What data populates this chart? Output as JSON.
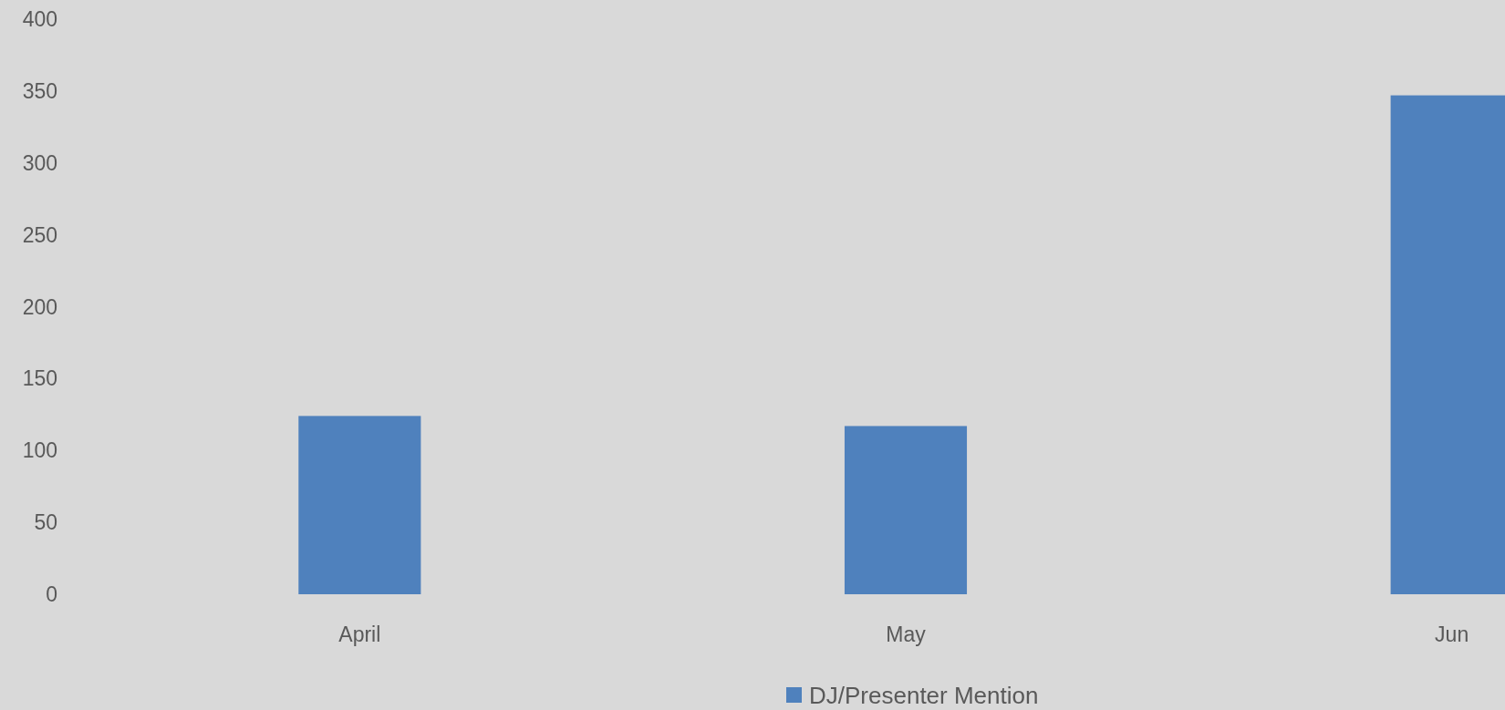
{
  "chart_data": {
    "type": "bar",
    "categories": [
      "April",
      "May",
      "Jun"
    ],
    "series": [
      {
        "name": "DJ/Presenter Mention",
        "color": "#4f81bd",
        "values": [
          124,
          117,
          347
        ]
      }
    ],
    "ylim": [
      0,
      400
    ],
    "yticks": [
      0,
      50,
      100,
      150,
      200,
      250,
      300,
      350,
      400
    ],
    "grid": false,
    "legend": "bottom"
  }
}
